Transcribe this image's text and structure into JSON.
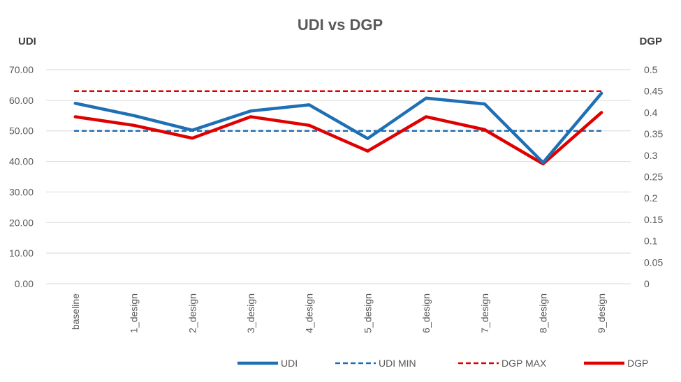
{
  "chart_data": {
    "type": "line",
    "title": "UDI vs DGP",
    "categories": [
      "baseline",
      "1_design",
      "2_design",
      "3_design",
      "4_design",
      "5_design",
      "6_design",
      "7_design",
      "8_design",
      "9_design"
    ],
    "y_left": {
      "label": "UDI",
      "range": [
        0,
        70
      ],
      "ticks": [
        "0.00",
        "10.00",
        "20.00",
        "30.00",
        "40.00",
        "50.00",
        "60.00",
        "70.00"
      ]
    },
    "y_right": {
      "label": "DGP",
      "range": [
        0,
        0.5
      ],
      "ticks": [
        "0",
        "0.05",
        "0.1",
        "0.15",
        "0.2",
        "0.25",
        "0.3",
        "0.35",
        "0.4",
        "0.45",
        "0.5"
      ]
    },
    "series": [
      {
        "name": "UDI",
        "axis": "left",
        "style": "solid",
        "color": "#1f6fb4",
        "values": [
          59.0,
          55.0,
          50.2,
          56.5,
          58.5,
          47.5,
          60.7,
          58.8,
          39.6,
          62.3
        ]
      },
      {
        "name": "UDI MIN",
        "axis": "left",
        "style": "dashed",
        "color": "#1f6fb4",
        "values": [
          50,
          50,
          50,
          50,
          50,
          50,
          50,
          50,
          50,
          50
        ]
      },
      {
        "name": "DGP MAX",
        "axis": "right",
        "style": "dashed",
        "color": "#e00000",
        "values": [
          0.45,
          0.45,
          0.45,
          0.45,
          0.45,
          0.45,
          0.45,
          0.45,
          0.45,
          0.45
        ]
      },
      {
        "name": "DGP",
        "axis": "right",
        "style": "solid",
        "color": "#e00000",
        "values": [
          0.39,
          0.37,
          0.34,
          0.39,
          0.37,
          0.31,
          0.39,
          0.36,
          0.28,
          0.4
        ]
      }
    ],
    "grid": true,
    "legend_position": "bottom"
  }
}
